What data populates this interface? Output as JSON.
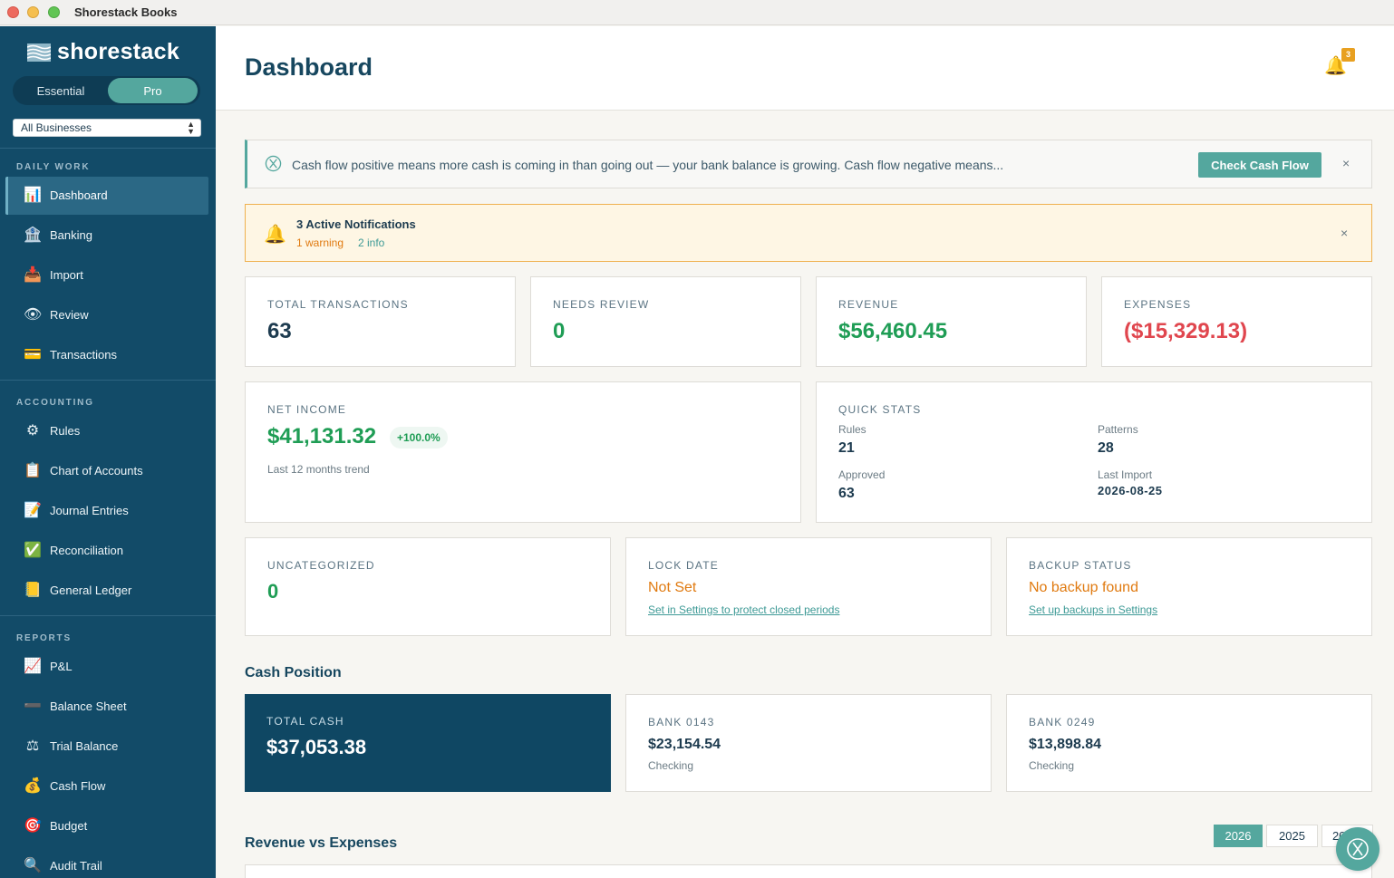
{
  "window": {
    "title": "Shorestack Books"
  },
  "sidebar": {
    "brand": "shorestack",
    "plan_toggle": {
      "options": [
        "Essential",
        "Pro"
      ],
      "selected": "Pro"
    },
    "business_select": {
      "value": "All Businesses"
    },
    "sections": [
      {
        "label": "DAILY WORK",
        "items": [
          {
            "label": "Dashboard",
            "icon": "bar-chart-icon",
            "glyph": "📊",
            "active": true
          },
          {
            "label": "Banking",
            "icon": "bank-icon",
            "glyph": "🏦"
          },
          {
            "label": "Import",
            "icon": "inbox-tray-icon",
            "glyph": "📥"
          },
          {
            "label": "Review",
            "icon": "eye-icon",
            "glyph": "👁"
          },
          {
            "label": "Transactions",
            "icon": "credit-card-icon",
            "glyph": "💳"
          }
        ]
      },
      {
        "label": "ACCOUNTING",
        "items": [
          {
            "label": "Rules",
            "icon": "gear-icon",
            "glyph": "⚙"
          },
          {
            "label": "Chart of Accounts",
            "icon": "clipboard-icon",
            "glyph": "📋"
          },
          {
            "label": "Journal Entries",
            "icon": "memo-icon",
            "glyph": "📝"
          },
          {
            "label": "Reconciliation",
            "icon": "check-mark-icon",
            "glyph": "✅"
          },
          {
            "label": "General Ledger",
            "icon": "ledger-icon",
            "glyph": "📒"
          }
        ]
      },
      {
        "label": "REPORTS",
        "items": [
          {
            "label": "P&L",
            "icon": "chart-increasing-icon",
            "glyph": "📈"
          },
          {
            "label": "Balance Sheet",
            "icon": "dash-icon",
            "glyph": "➖"
          },
          {
            "label": "Trial Balance",
            "icon": "scales-icon",
            "glyph": "⚖"
          },
          {
            "label": "Cash Flow",
            "icon": "money-bag-icon",
            "glyph": "💰"
          },
          {
            "label": "Budget",
            "icon": "target-icon",
            "glyph": "🎯"
          },
          {
            "label": "Audit Trail",
            "icon": "magnifier-icon",
            "glyph": "🔍"
          }
        ]
      }
    ]
  },
  "header": {
    "title": "Dashboard",
    "notification_count": "3",
    "bell_icon": "bell-icon"
  },
  "banner": {
    "text": "Cash flow positive means more cash is coming in than going out — your bank balance is growing. Cash flow negative means...",
    "button": "Check Cash Flow",
    "close": "×"
  },
  "notifications": {
    "title": "3 Active Notifications",
    "warning": "1 warning",
    "info": "2 info",
    "close": "×"
  },
  "stats": {
    "total_transactions": {
      "label": "TOTAL TRANSACTIONS",
      "value": "63"
    },
    "needs_review": {
      "label": "NEEDS REVIEW",
      "value": "0"
    },
    "revenue": {
      "label": "REVENUE",
      "value": "$56,460.45"
    },
    "expenses": {
      "label": "EXPENSES",
      "value": "($15,329.13)"
    }
  },
  "net_income": {
    "label": "NET INCOME",
    "value": "$41,131.32",
    "change": "+100.0%",
    "subtitle": "Last 12 months trend"
  },
  "quick_stats": {
    "label": "QUICK STATS",
    "rules_label": "Rules",
    "rules_value": "21",
    "patterns_label": "Patterns",
    "patterns_value": "28",
    "approved_label": "Approved",
    "approved_value": "63",
    "last_import_label": "Last Import",
    "last_import_value": "2026-08-25"
  },
  "uncategorized": {
    "label": "UNCATEGORIZED",
    "value": "0"
  },
  "lock_date": {
    "label": "LOCK DATE",
    "status": "Not Set",
    "link": "Set in Settings to protect closed periods"
  },
  "backup": {
    "label": "BACKUP STATUS",
    "status": "No backup found",
    "link": "Set up backups in Settings"
  },
  "cash_position": {
    "title": "Cash Position",
    "total": {
      "label": "TOTAL CASH",
      "value": "$37,053.38"
    },
    "banks": [
      {
        "label": "BANK 0143",
        "value": "$23,154.54",
        "type": "Checking"
      },
      {
        "label": "BANK 0249",
        "value": "$13,898.84",
        "type": "Checking"
      }
    ]
  },
  "revenue_vs_expenses": {
    "title": "Revenue vs Expenses",
    "years": [
      "2026",
      "2025",
      "2024"
    ],
    "selected_year": "2026"
  },
  "colors": {
    "sidebar": "#124b68",
    "accent": "#54a79e",
    "positive": "#1f9d55",
    "negative": "#e0464e",
    "warning": "#e07a10"
  }
}
